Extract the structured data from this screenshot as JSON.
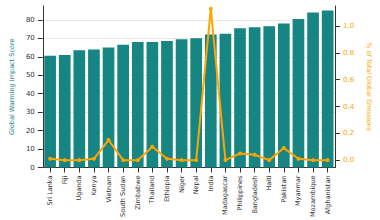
{
  "chart_data": {
    "type": "bar",
    "categories": [
      "Sri Lanka",
      "Fiji",
      "Uganda",
      "Kenya",
      "Vietnam",
      "South Sudan",
      "Zimbabwe",
      "Thailand",
      "Ethiopia",
      "Niger",
      "Nepal",
      "India",
      "Madagascar",
      "Philippines",
      "Bangladesh",
      "Haiti",
      "Pakistan",
      "Myanmar",
      "Mozambique",
      "Afghanistan"
    ],
    "y_label": "Global Warming Impact Score",
    "y2_label": "% of Total Global Emissions",
    "ylim": [
      0,
      87.5
    ],
    "yticks": [
      0,
      10,
      20,
      30,
      40,
      50,
      60,
      70,
      80
    ],
    "y2lim": [
      -0.055,
      1.15
    ],
    "y2ticks": [
      {
        "value": 0,
        "label": "0.0"
      },
      {
        "value": 0.2,
        "label": "0.2"
      },
      {
        "value": 0.4,
        "label": "0.4"
      },
      {
        "value": 0.6,
        "label": "0.6"
      },
      {
        "value": 0.8,
        "label": "0.8"
      },
      {
        "value": 1.0,
        "label": "1.0"
      }
    ],
    "grid": true,
    "series": [
      {
        "name": "Global Warming Impact Score",
        "type": "bar",
        "color": "#178582",
        "values": [
          60.5,
          61,
          63.5,
          64,
          65,
          66.5,
          68,
          68,
          68.5,
          69.5,
          70,
          72,
          72.5,
          75.5,
          76,
          76.5,
          78,
          80.5,
          84,
          85
        ]
      },
      {
        "name": "% of Total Global Emissions",
        "type": "line",
        "axis": "y2",
        "color": "#ffa500",
        "marker": "o",
        "values": [
          0.01,
          0.0,
          0.0,
          0.01,
          0.15,
          0.0,
          0.0,
          0.1,
          0.01,
          0.0,
          0.0,
          1.13,
          0.0,
          0.05,
          0.04,
          0.0,
          0.09,
          0.01,
          0.0,
          0.0
        ]
      }
    ]
  }
}
